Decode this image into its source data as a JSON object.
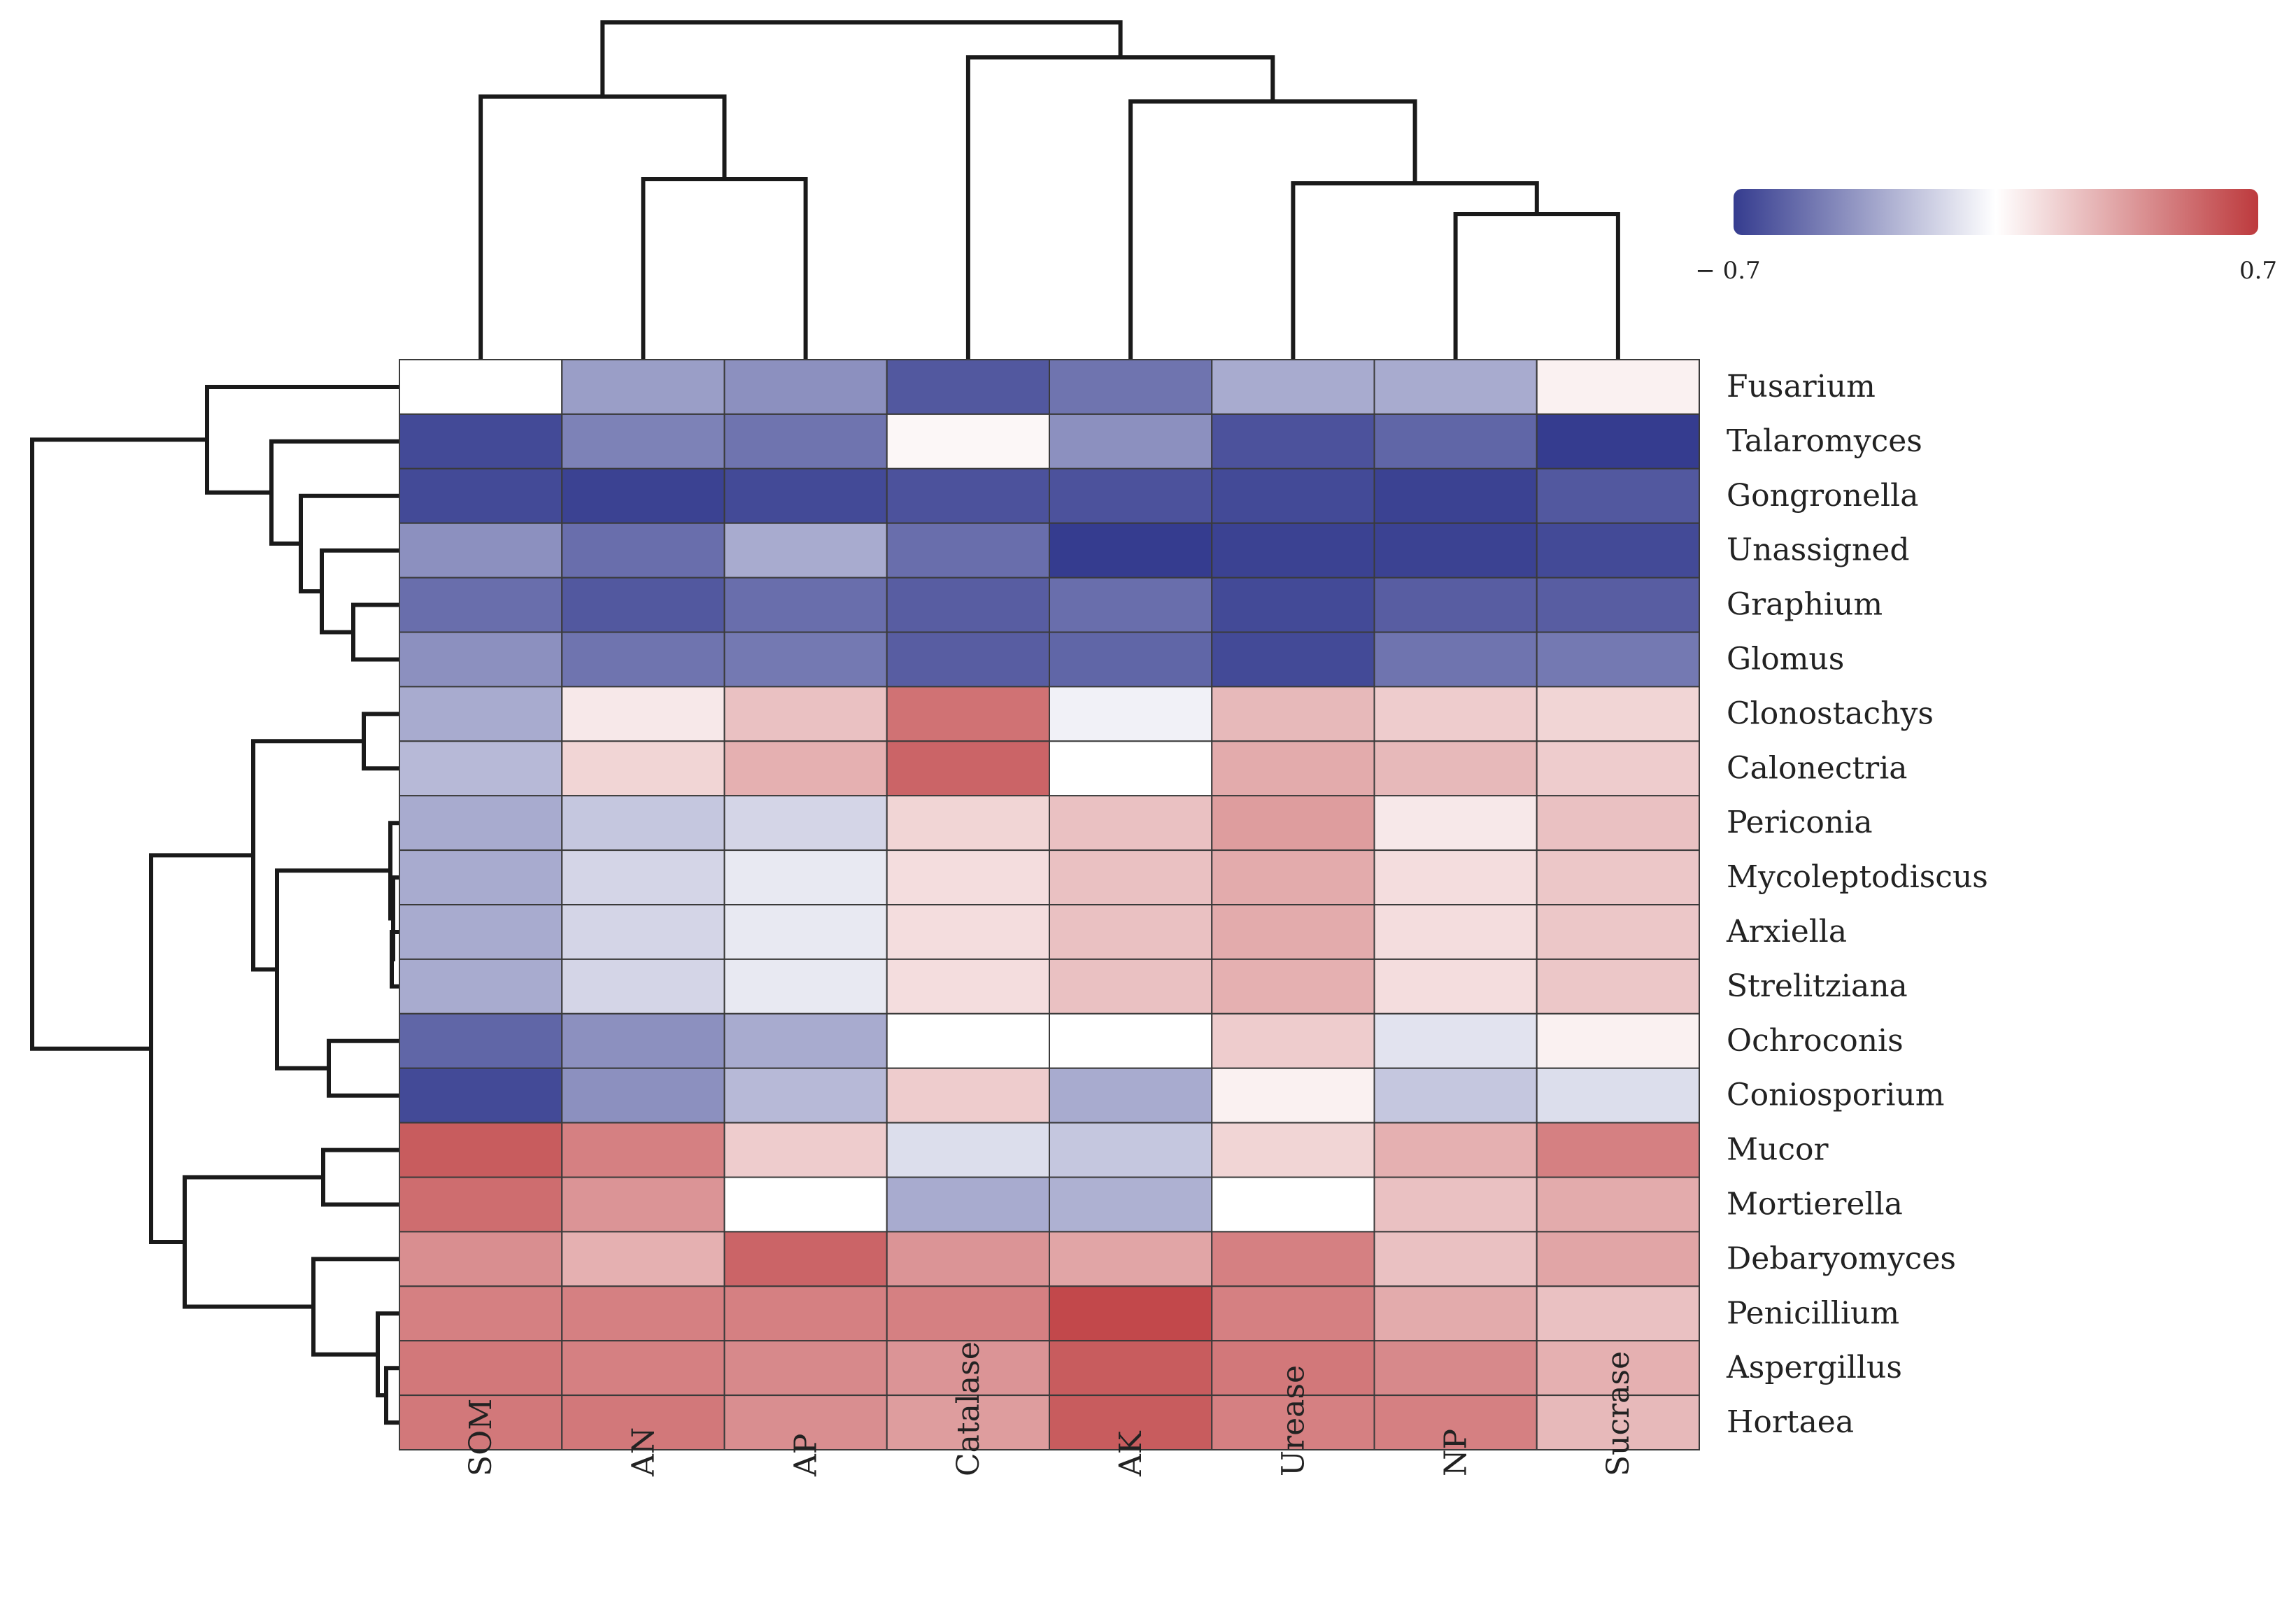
{
  "chart_data": {
    "type": "heatmap",
    "title": "",
    "columns": [
      "SOM",
      "AN",
      "AP",
      "Catalase",
      "AK",
      "Urease",
      "NP",
      "Sucrase"
    ],
    "rows": [
      "Fusarium",
      "Talaromyces",
      "Gongronella",
      "Unassigned",
      "Graphium",
      "Glomus",
      "Clonostachys",
      "Calonectria",
      "Periconia",
      "Mycoleptodiscus",
      "Arxiella",
      "Strelitziana",
      "Ochroconis",
      "Coniosporium",
      "Mucor",
      "Mortierella",
      "Debaryomyces",
      "Penicillium",
      "Aspergillus",
      "Hortaea"
    ],
    "values": [
      [
        0.0,
        -0.35,
        -0.4,
        -0.6,
        -0.5,
        -0.3,
        -0.3,
        0.05
      ],
      [
        -0.65,
        -0.45,
        -0.5,
        0.03,
        -0.4,
        -0.62,
        -0.55,
        -0.7
      ],
      [
        -0.65,
        -0.68,
        -0.65,
        -0.62,
        -0.62,
        -0.65,
        -0.68,
        -0.6
      ],
      [
        -0.4,
        -0.52,
        -0.3,
        -0.52,
        -0.7,
        -0.68,
        -0.68,
        -0.65
      ],
      [
        -0.52,
        -0.6,
        -0.52,
        -0.58,
        -0.52,
        -0.65,
        -0.58,
        -0.58
      ],
      [
        -0.4,
        -0.5,
        -0.48,
        -0.58,
        -0.55,
        -0.65,
        -0.5,
        -0.48
      ],
      [
        -0.3,
        0.08,
        0.22,
        0.5,
        -0.05,
        0.25,
        0.18,
        0.15
      ],
      [
        -0.25,
        0.15,
        0.28,
        0.55,
        0.0,
        0.3,
        0.25,
        0.18
      ],
      [
        -0.3,
        -0.2,
        -0.15,
        0.15,
        0.22,
        0.35,
        0.08,
        0.22
      ],
      [
        -0.3,
        -0.15,
        -0.08,
        0.12,
        0.22,
        0.3,
        0.12,
        0.2
      ],
      [
        -0.3,
        -0.15,
        -0.08,
        0.12,
        0.22,
        0.3,
        0.12,
        0.2
      ],
      [
        -0.3,
        -0.15,
        -0.08,
        0.12,
        0.22,
        0.28,
        0.12,
        0.2
      ],
      [
        -0.55,
        -0.4,
        -0.3,
        0.0,
        0.0,
        0.18,
        -0.1,
        0.05
      ],
      [
        -0.65,
        -0.4,
        -0.25,
        0.18,
        -0.3,
        0.05,
        -0.2,
        -0.12
      ],
      [
        0.58,
        0.45,
        0.18,
        -0.12,
        -0.2,
        0.15,
        0.28,
        0.45
      ],
      [
        0.52,
        0.38,
        0.0,
        -0.3,
        -0.28,
        0.0,
        0.22,
        0.3
      ],
      [
        0.4,
        0.28,
        0.55,
        0.38,
        0.32,
        0.45,
        0.22,
        0.32
      ],
      [
        0.45,
        0.45,
        0.45,
        0.45,
        0.65,
        0.45,
        0.3,
        0.22
      ],
      [
        0.48,
        0.45,
        0.42,
        0.38,
        0.58,
        0.48,
        0.42,
        0.28
      ],
      [
        0.48,
        0.48,
        0.4,
        0.35,
        0.58,
        0.45,
        0.45,
        0.25
      ]
    ],
    "colorbar": {
      "min": -0.7,
      "max": 0.7,
      "min_label": "− 0.7",
      "max_label": "0.7",
      "low_color": "#353c8f",
      "mid_color": "#ffffff",
      "high_color": "#bd3a3d"
    },
    "row_dendrogram": true,
    "col_dendrogram": true
  }
}
